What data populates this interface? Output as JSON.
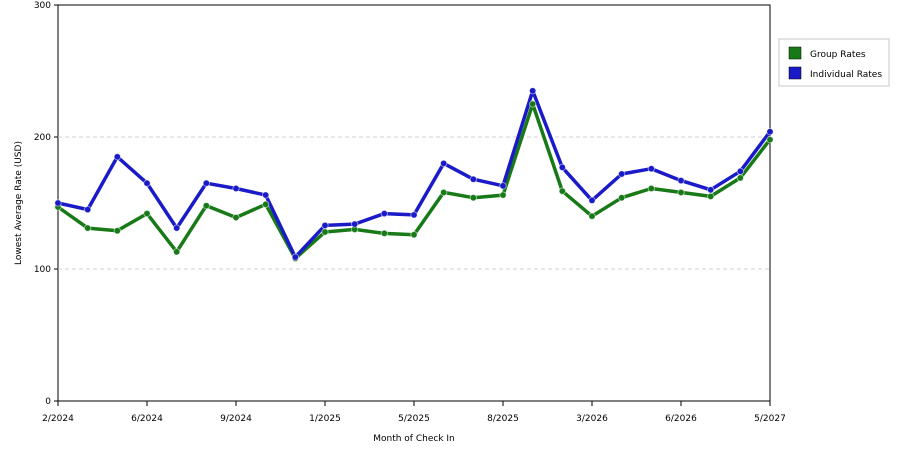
{
  "chart_data": {
    "type": "line",
    "xlabel": "Month of Check In",
    "ylabel": "Lowest Average Rate (USD)",
    "ylim": [
      0,
      300
    ],
    "yticks": [
      0,
      100,
      200,
      300
    ],
    "x_tick_labels": [
      "2/2024",
      "6/2024",
      "9/2024",
      "1/2025",
      "5/2025",
      "8/2025",
      "3/2026",
      "6/2026",
      "5/2027"
    ],
    "grid": "horizontal-dashed",
    "legend_position": "top-right-outside",
    "point_count": 25,
    "series": [
      {
        "name": "Group Rates",
        "color": "#177a17",
        "values": [
          147,
          131,
          129,
          142,
          113,
          148,
          139,
          149,
          108,
          128,
          130,
          127,
          126,
          158,
          154,
          156,
          225,
          159,
          140,
          154,
          161,
          158,
          155,
          169,
          198
        ]
      },
      {
        "name": "Individual Rates",
        "color": "#1a1ac8",
        "values": [
          150,
          145,
          185,
          165,
          131,
          165,
          161,
          156,
          109,
          133,
          134,
          142,
          141,
          180,
          168,
          163,
          235,
          177,
          152,
          172,
          176,
          167,
          160,
          174,
          204
        ]
      }
    ]
  }
}
